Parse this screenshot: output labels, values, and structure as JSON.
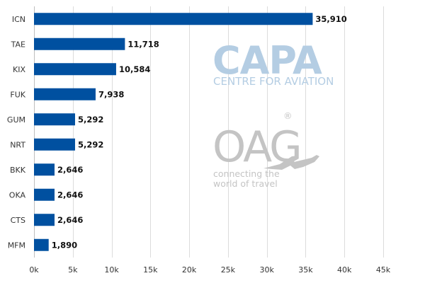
{
  "chart_data": {
    "type": "bar",
    "orientation": "horizontal",
    "categories": [
      "ICN",
      "TAE",
      "KIX",
      "FUK",
      "GUM",
      "NRT",
      "BKK",
      "OKA",
      "CTS",
      "MFM"
    ],
    "values": [
      35910,
      11718,
      10584,
      7938,
      5292,
      5292,
      2646,
      2646,
      2646,
      1890
    ],
    "value_labels": [
      "35,910",
      "11,718",
      "10,584",
      "7,938",
      "5,292",
      "5,292",
      "2,646",
      "2,646",
      "2,646",
      "1,890"
    ],
    "x_ticks": [
      0,
      5000,
      10000,
      15000,
      20000,
      25000,
      30000,
      35000,
      40000,
      45000
    ],
    "x_tick_labels": [
      "0k",
      "5k",
      "10k",
      "15k",
      "20k",
      "25k",
      "30k",
      "35k",
      "40k",
      "45k"
    ],
    "xlim": [
      0,
      45000
    ],
    "grid": "vertical",
    "legend": "none",
    "bar_color": "#0050a0"
  },
  "watermark": {
    "capa": "CAPA",
    "capa_sub": "CENTRE FOR AVIATION",
    "oag": "OAG",
    "oag_mark": "®",
    "oag_tag_line1": "connecting the",
    "oag_tag_line2": "world of travel",
    "capa_color": "#b4cde3",
    "oag_color": "#c4c4c4"
  }
}
